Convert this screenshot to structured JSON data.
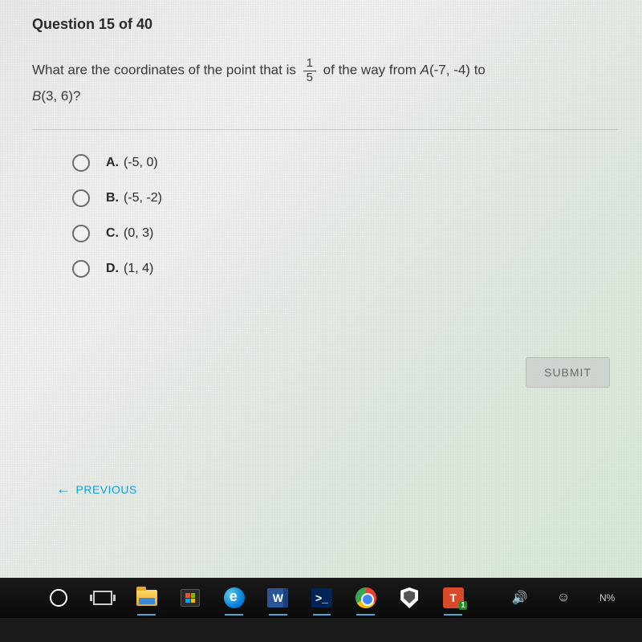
{
  "header": {
    "title": "Question 15 of 40"
  },
  "question": {
    "prefix": "What are the coordinates of the point that is ",
    "frac_num": "1",
    "frac_den": "5",
    "mid": " of the way from ",
    "pointA_name": "A",
    "pointA_coords": "(-7, -4)",
    "to_text": " to ",
    "pointB_name": "B",
    "pointB_coords": "(3, 6)",
    "qmark": "?"
  },
  "choices": [
    {
      "letter": "A.",
      "text": "(-5, 0)"
    },
    {
      "letter": "B.",
      "text": "(-5, -2)"
    },
    {
      "letter": "C.",
      "text": "(0, 3)"
    },
    {
      "letter": "D.",
      "text": "(1, 4)"
    }
  ],
  "buttons": {
    "submit": "SUBMIT",
    "previous": "PREVIOUS"
  },
  "taskbar": {
    "word_label": "W",
    "ps_label": ">_",
    "tl_label": "T",
    "tl_sub": "1",
    "tray_last": "N%"
  },
  "colors": {
    "link": "#1a9cd8",
    "submit_bg": "rgba(200,200,200,0.6)",
    "taskbar_bg": "#0a0a0a"
  }
}
